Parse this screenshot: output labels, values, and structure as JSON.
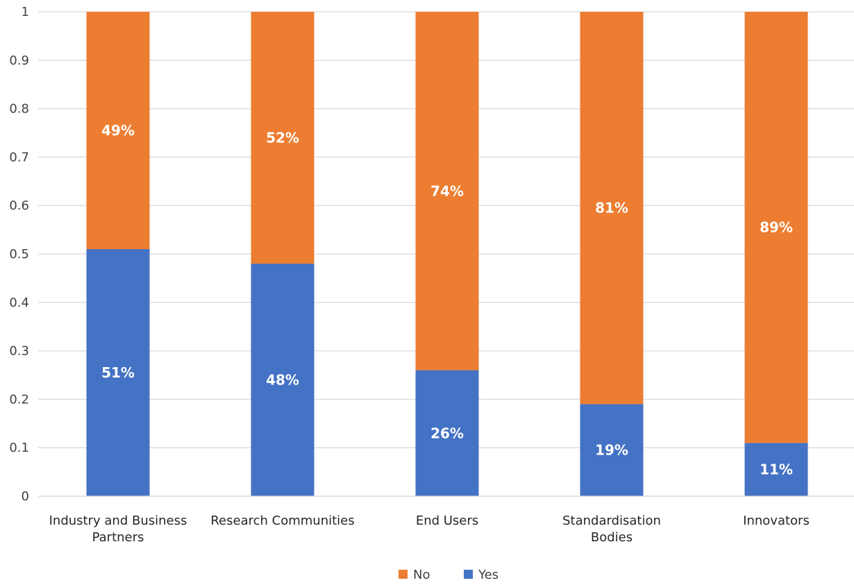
{
  "chart_data": {
    "type": "bar",
    "stacked": true,
    "categories": [
      "Industry and Business Partners",
      "Research Communities",
      "End Users",
      "Standardisation Bodies",
      "Innovators"
    ],
    "category_label_lines": [
      [
        "Industry and Business",
        "Partners"
      ],
      [
        "Research Communities"
      ],
      [
        "End Users"
      ],
      [
        "Standardisation",
        "Bodies"
      ],
      [
        "Innovators"
      ]
    ],
    "series": [
      {
        "name": "Yes",
        "color": "#4472C4",
        "values": [
          0.51,
          0.48,
          0.26,
          0.19,
          0.11
        ],
        "labels": [
          "51%",
          "48%",
          "26%",
          "19%",
          "11%"
        ]
      },
      {
        "name": "No",
        "color": "#ED7D31",
        "values": [
          0.49,
          0.52,
          0.74,
          0.81,
          0.89
        ],
        "labels": [
          "49%",
          "52%",
          "74%",
          "81%",
          "89%"
        ]
      }
    ],
    "y_ticks": [
      "0",
      "0.1",
      "0.2",
      "0.3",
      "0.4",
      "0.5",
      "0.6",
      "0.7",
      "0.8",
      "0.9",
      "1"
    ],
    "ylim": [
      0,
      1
    ],
    "grid": true,
    "legend_position": "bottom",
    "legend_order": [
      "No",
      "Yes"
    ],
    "gridline_color": "#D9D9D9"
  }
}
